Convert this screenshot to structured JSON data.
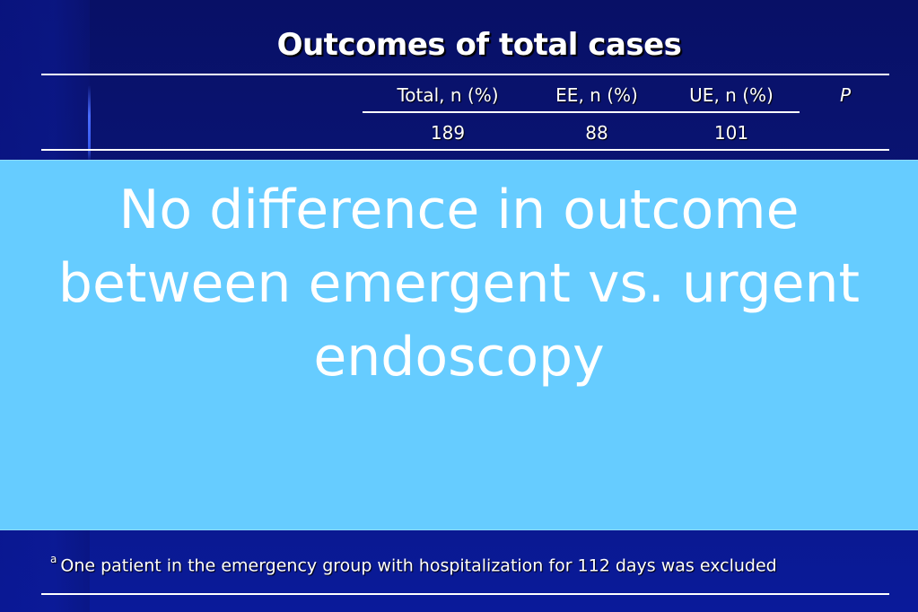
{
  "slide": {
    "title": "Outcomes of total cases"
  },
  "table": {
    "headers": [
      "Total, n (%)",
      "EE, n (%)",
      "UE, n (%)",
      "P"
    ],
    "row": [
      "189",
      "88",
      "101",
      ""
    ]
  },
  "overlay": {
    "lines": [
      "No difference in outcome",
      "between emergent  vs. urgent",
      "endoscopy"
    ]
  },
  "footnote": {
    "marker": "a",
    "text": "One patient in the emergency group with hospitalization for 112 days was excluded"
  },
  "colors": {
    "background": "#0a1270",
    "overlay": "#66ccff",
    "text": "#ffffff"
  }
}
